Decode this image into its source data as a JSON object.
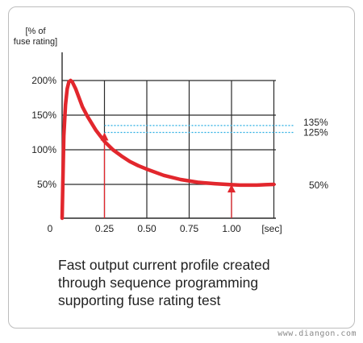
{
  "chart_data": {
    "type": "line",
    "ylabel": "[% of\nfuse rating]",
    "xlabel": "[sec]",
    "x_ticks": [
      0,
      0.25,
      0.5,
      0.75,
      1.0
    ],
    "x_tick_labels": [
      "0",
      "0.25",
      "0.50",
      "0.75",
      "1.00"
    ],
    "y_ticks": [
      50,
      100,
      150,
      200
    ],
    "y_tick_labels": [
      "50%",
      "100%",
      "150%",
      "200%"
    ],
    "xlim": [
      0,
      1.25
    ],
    "ylim": [
      0,
      225
    ],
    "grid": true,
    "series": [
      {
        "color": "#e2272d",
        "x": [
          0,
          0.01,
          0.02,
          0.03,
          0.04,
          0.05,
          0.06,
          0.08,
          0.1,
          0.12,
          0.15,
          0.2,
          0.25,
          0.3,
          0.35,
          0.4,
          0.45,
          0.5,
          0.6,
          0.7,
          0.8,
          0.9,
          1.0,
          1.05,
          1.1,
          1.15,
          1.2,
          1.25
        ],
        "y": [
          0,
          120,
          165,
          188,
          198,
          200,
          198,
          188,
          175,
          162,
          148,
          128,
          112,
          100,
          91,
          83,
          77,
          72,
          63,
          57,
          53,
          51,
          49.5,
          49,
          49,
          49,
          49.5,
          50
        ]
      }
    ],
    "reference_lines": [
      {
        "y": 135,
        "label": "135%",
        "color": "#29aee3",
        "style": "dotted"
      },
      {
        "y": 125,
        "label": "125%",
        "color": "#29aee3",
        "style": "dotted"
      }
    ],
    "right_labels": [
      {
        "y": 50,
        "label": "50%"
      }
    ],
    "markers": [
      {
        "x": 0.25,
        "y_to": 125,
        "color": "#e2272d"
      },
      {
        "x": 1.0,
        "y_to": 50,
        "color": "#e2272d"
      }
    ]
  },
  "caption": {
    "line1": "Fast output current profile created",
    "line2": "through sequence programming",
    "line3": "supporting fuse rating test"
  },
  "watermark": "www.diangon.com"
}
